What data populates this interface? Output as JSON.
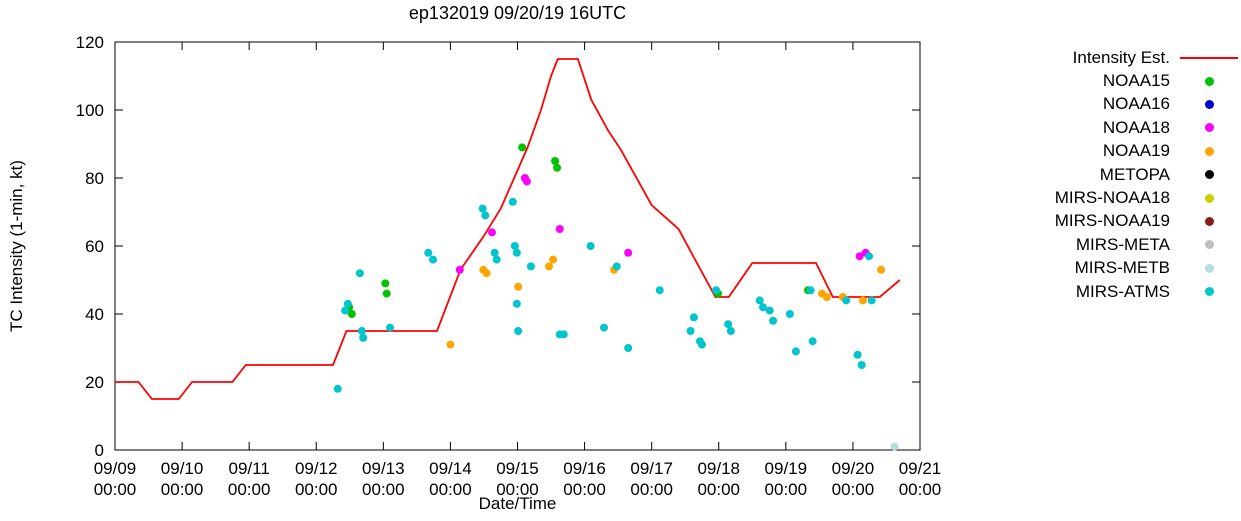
{
  "chart_data": {
    "type": "line+scatter",
    "title": "ep132019 09/20/19 16UTC",
    "xlabel": "Date/Time",
    "ylabel": "TC Intensity (1-min, kt)",
    "ylim": [
      0,
      120
    ],
    "yticks": [
      0,
      20,
      40,
      60,
      80,
      100,
      120
    ],
    "x_range_days": [
      0,
      12
    ],
    "x_day_labels": [
      "09/09",
      "09/10",
      "09/11",
      "09/12",
      "09/13",
      "09/14",
      "09/15",
      "09/16",
      "09/17",
      "09/18",
      "09/19",
      "09/20",
      "09/21"
    ],
    "x_time_label": "00:00",
    "grid": false,
    "legend_position": "right",
    "axis_color": "#000000",
    "intensity_line": {
      "label": "Intensity Est.",
      "color": "#ff0000",
      "points_t_kt": [
        [
          0,
          20
        ],
        [
          0.35,
          20
        ],
        [
          0.55,
          15
        ],
        [
          0.95,
          15
        ],
        [
          1.15,
          20
        ],
        [
          1.75,
          20
        ],
        [
          1.95,
          25
        ],
        [
          3.25,
          25
        ],
        [
          3.45,
          35
        ],
        [
          4.8,
          35
        ],
        [
          5.15,
          53
        ],
        [
          5.5,
          63
        ],
        [
          5.75,
          71
        ],
        [
          5.95,
          80
        ],
        [
          6.15,
          89
        ],
        [
          6.35,
          100
        ],
        [
          6.5,
          110
        ],
        [
          6.6,
          115
        ],
        [
          6.9,
          115
        ],
        [
          7.1,
          103
        ],
        [
          7.35,
          94
        ],
        [
          7.55,
          88
        ],
        [
          8.0,
          72
        ],
        [
          8.4,
          65
        ],
        [
          8.95,
          45
        ],
        [
          9.15,
          45
        ],
        [
          9.5,
          55
        ],
        [
          10.45,
          55
        ],
        [
          10.7,
          45
        ],
        [
          11.4,
          45
        ],
        [
          11.7,
          50
        ]
      ]
    },
    "series": [
      {
        "label": "NOAA15",
        "color": "#00c400",
        "points_t_kt": [
          [
            3.49,
            42
          ],
          [
            3.53,
            40
          ],
          [
            4.03,
            49
          ],
          [
            4.05,
            46
          ],
          [
            6.07,
            89
          ],
          [
            6.56,
            85
          ],
          [
            6.59,
            83
          ],
          [
            8.99,
            46
          ],
          [
            10.33,
            47
          ]
        ]
      },
      {
        "label": "NOAA16",
        "color": "#0000cd",
        "points_t_kt": []
      },
      {
        "label": "NOAA18",
        "color": "#ff00ff",
        "points_t_kt": [
          [
            5.14,
            53
          ],
          [
            5.62,
            64
          ],
          [
            6.11,
            80
          ],
          [
            6.14,
            79
          ],
          [
            6.63,
            65
          ],
          [
            7.65,
            58
          ],
          [
            11.1,
            57
          ],
          [
            11.19,
            58
          ]
        ]
      },
      {
        "label": "NOAA19",
        "color": "#ffa500",
        "points_t_kt": [
          [
            5.0,
            31
          ],
          [
            5.49,
            53
          ],
          [
            5.54,
            52
          ],
          [
            6.01,
            48
          ],
          [
            6.47,
            54
          ],
          [
            6.53,
            56
          ],
          [
            7.44,
            53
          ],
          [
            10.54,
            46
          ],
          [
            10.61,
            45
          ],
          [
            10.85,
            45
          ],
          [
            11.15,
            44
          ],
          [
            11.42,
            53
          ]
        ]
      },
      {
        "label": "METOPA",
        "color": "#000000",
        "points_t_kt": []
      },
      {
        "label": "MIRS-NOAA18",
        "color": "#cccc00",
        "points_t_kt": []
      },
      {
        "label": "MIRS-NOAA19",
        "color": "#8b1a1a",
        "points_t_kt": []
      },
      {
        "label": "MIRS-META",
        "color": "#bebebe",
        "points_t_kt": []
      },
      {
        "label": "MIRS-METB",
        "color": "#b4dede",
        "points_t_kt": [
          [
            11.62,
            1
          ]
        ]
      },
      {
        "label": "MIRS-ATMS",
        "color": "#00c5cd",
        "points_t_kt": [
          [
            3.32,
            18
          ],
          [
            3.43,
            41
          ],
          [
            3.47,
            43
          ],
          [
            3.65,
            52
          ],
          [
            3.68,
            35
          ],
          [
            3.7,
            33
          ],
          [
            4.1,
            36
          ],
          [
            4.67,
            58
          ],
          [
            4.74,
            56
          ],
          [
            5.48,
            71
          ],
          [
            5.52,
            69
          ],
          [
            5.66,
            58
          ],
          [
            5.69,
            56
          ],
          [
            5.93,
            73
          ],
          [
            5.96,
            60
          ],
          [
            5.99,
            58
          ],
          [
            5.99,
            43
          ],
          [
            6.01,
            35
          ],
          [
            6.2,
            54
          ],
          [
            6.63,
            34
          ],
          [
            6.69,
            34
          ],
          [
            7.09,
            60
          ],
          [
            7.29,
            36
          ],
          [
            7.48,
            54
          ],
          [
            7.65,
            30
          ],
          [
            8.12,
            47
          ],
          [
            8.58,
            35
          ],
          [
            8.63,
            39
          ],
          [
            8.72,
            32
          ],
          [
            8.75,
            31
          ],
          [
            8.96,
            47
          ],
          [
            9.14,
            37
          ],
          [
            9.18,
            35
          ],
          [
            9.61,
            44
          ],
          [
            9.66,
            42
          ],
          [
            9.76,
            41
          ],
          [
            9.81,
            38
          ],
          [
            10.06,
            40
          ],
          [
            10.15,
            29
          ],
          [
            10.37,
            47
          ],
          [
            10.4,
            32
          ],
          [
            10.9,
            44
          ],
          [
            11.07,
            28
          ],
          [
            11.13,
            25
          ],
          [
            11.24,
            57
          ],
          [
            11.28,
            44
          ]
        ]
      }
    ]
  }
}
